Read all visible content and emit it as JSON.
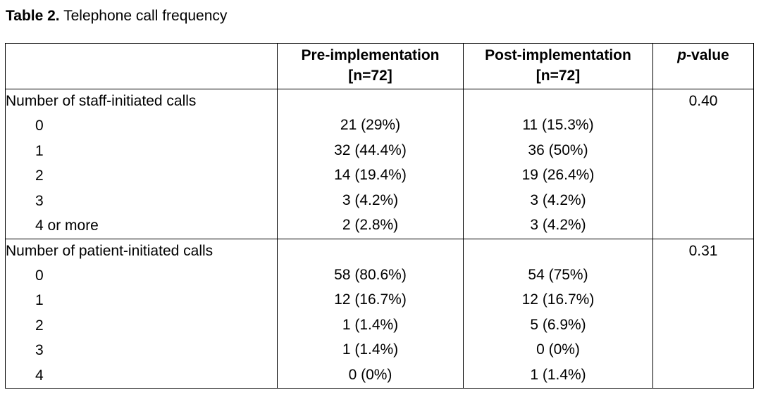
{
  "caption": {
    "label": "Table 2.",
    "title": " Telephone call frequency"
  },
  "table": {
    "headers": {
      "col0": "",
      "pre_line1": "Pre-implementation",
      "pre_line2": "[n=72]",
      "post_line1": "Post-implementation",
      "post_line2": "[n=72]",
      "pvalue_italic": "p",
      "pvalue_rest": "-value"
    },
    "groups": [
      {
        "label": "Number of staff-initiated calls",
        "p_value": "0.40",
        "rows": [
          {
            "label": "0",
            "pre": "21 (29%)",
            "post": "11 (15.3%)"
          },
          {
            "label": "1",
            "pre": "32 (44.4%)",
            "post": "36 (50%)"
          },
          {
            "label": "2",
            "pre": "14 (19.4%)",
            "post": "19 (26.4%)"
          },
          {
            "label": "3",
            "pre": "3 (4.2%)",
            "post": "3 (4.2%)"
          },
          {
            "label": "4 or more",
            "pre": "2 (2.8%)",
            "post": "3 (4.2%)"
          }
        ]
      },
      {
        "label": "Number of patient-initiated calls",
        "p_value": "0.31",
        "rows": [
          {
            "label": "0",
            "pre": "58 (80.6%)",
            "post": "54 (75%)"
          },
          {
            "label": "1",
            "pre": "12 (16.7%)",
            "post": "12 (16.7%)"
          },
          {
            "label": "2",
            "pre": "1 (1.4%)",
            "post": "5 (6.9%)"
          },
          {
            "label": "3",
            "pre": "1 (1.4%)",
            "post": "0 (0%)"
          },
          {
            "label": "4",
            "pre": "0 (0%)",
            "post": "1 (1.4%)"
          }
        ]
      }
    ]
  }
}
